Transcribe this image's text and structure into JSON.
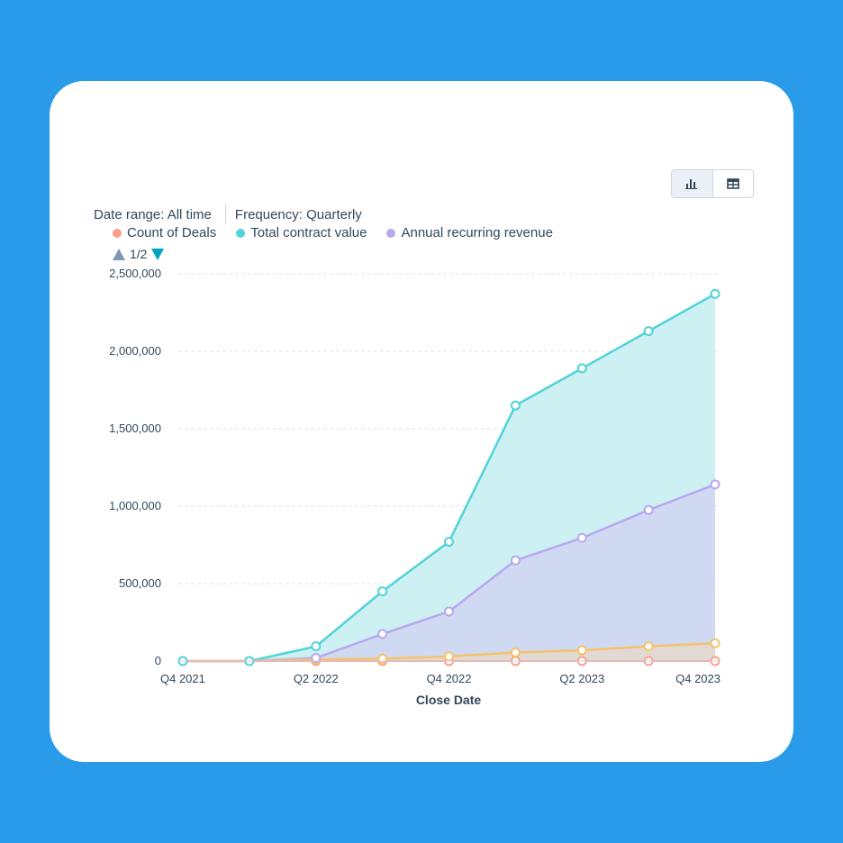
{
  "filters": {
    "date_range": "Date range: All time",
    "frequency": "Frequency: Quarterly"
  },
  "legend_pager": "1/2",
  "view_toggle": {
    "active": "chart-icon",
    "other": "table-icon"
  },
  "colors": {
    "background": "#2a9be9",
    "count_of_deals": "#f8a08b",
    "total_contract_value": "#51d3d9",
    "annual_recurring_revenue": "#b9a7f0",
    "count_line": "#f5c26b",
    "tcv_fill": "#cdf1f3",
    "arr_fill": "#cfdaf2",
    "grid": "#dfe3eb"
  },
  "chart_data": {
    "type": "area",
    "xlabel": "Close Date",
    "ylabel": "",
    "ylim": [
      0,
      2500000
    ],
    "yticks": [
      0,
      500000,
      1000000,
      1500000,
      2000000,
      2500000
    ],
    "ytick_labels": [
      "0",
      "500,000",
      "1,000,000",
      "1,500,000",
      "2,000,000",
      "2,500,000"
    ],
    "x": [
      "Q4 2021",
      "Q1 2022",
      "Q2 2022",
      "Q3 2022",
      "Q4 2022",
      "Q1 2023",
      "Q2 2023",
      "Q3 2023",
      "Q4 2023"
    ],
    "xtick_labels": [
      "Q4 2021",
      "",
      "Q2 2022",
      "",
      "Q4 2022",
      "",
      "Q2 2023",
      "",
      "Q4 2023"
    ],
    "grid": true,
    "legend_position": "top-left",
    "series": [
      {
        "name": "Count of Deals",
        "values": [
          0,
          0,
          0,
          0,
          0,
          0,
          0,
          0,
          0
        ]
      },
      {
        "name": "Total contract value",
        "values": [
          0,
          0,
          95000,
          450000,
          770000,
          1650000,
          1890000,
          2130000,
          2370000
        ]
      },
      {
        "name": "Annual recurring revenue",
        "values": [
          0,
          0,
          20000,
          175000,
          320000,
          650000,
          795000,
          975000,
          1140000
        ]
      },
      {
        "values": [
          0,
          0,
          10000,
          15000,
          30000,
          55000,
          70000,
          95000,
          115000
        ]
      }
    ]
  }
}
